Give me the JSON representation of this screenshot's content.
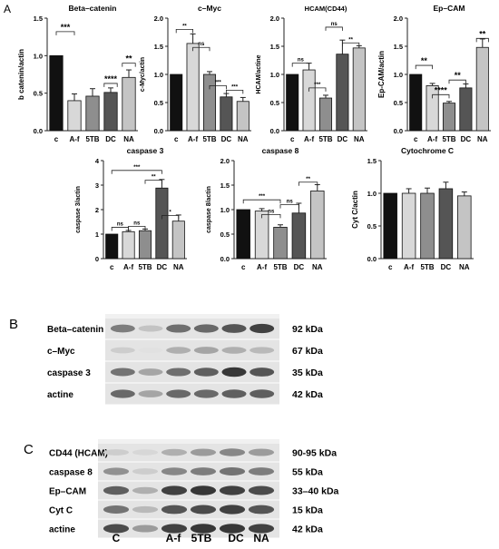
{
  "panel_labels": {
    "a": "A",
    "b": "B",
    "c": "C"
  },
  "colors": {
    "control": "#111111",
    "af": "#d8d8d8",
    "tb5": "#8e8e8e",
    "dc": "#555555",
    "na": "#c4c4c4",
    "error": "#222222"
  },
  "chart_data": [
    {
      "type": "bar",
      "title": "Beta–catenin",
      "ylabel": "b catenin/actin",
      "categories": [
        "c",
        "A-f",
        "5TB",
        "DC",
        "NA"
      ],
      "values": [
        1.0,
        0.4,
        0.46,
        0.51,
        0.71
      ],
      "errors": [
        0,
        0.09,
        0.1,
        0.06,
        0.1
      ],
      "ylim": [
        0,
        1.5
      ],
      "yticks": [
        "0.0",
        "0.5",
        "1.0",
        "1.5"
      ],
      "significance": [
        "***",
        "****",
        "**"
      ]
    },
    {
      "type": "bar",
      "title": "c–Myc",
      "ylabel": "c-Myc/actin",
      "categories": [
        "c",
        "A-f",
        "5TB",
        "DC",
        "NA"
      ],
      "values": [
        1.0,
        1.55,
        1.0,
        0.6,
        0.52
      ],
      "errors": [
        0,
        0.17,
        0.05,
        0.06,
        0.07
      ],
      "ylim": [
        0,
        2.0
      ],
      "yticks": [
        "0.0",
        "0.5",
        "1.0",
        "1.5",
        "2.0"
      ],
      "significance": [
        "**",
        "ns",
        "***",
        "***"
      ]
    },
    {
      "type": "bar",
      "title": "HCAM(CD44)",
      "ylabel": "HCAM/actine",
      "categories": [
        "c",
        "A-f",
        "5TB",
        "DC",
        "NA"
      ],
      "values": [
        1.0,
        1.08,
        0.58,
        1.36,
        1.47
      ],
      "errors": [
        0,
        0.12,
        0.05,
        0.25,
        0.04
      ],
      "ylim": [
        0,
        2.0
      ],
      "yticks": [
        "0.0",
        "0.5",
        "1.0",
        "1.5",
        "2.0"
      ],
      "significance": [
        "ns",
        "***",
        "ns",
        "**"
      ]
    },
    {
      "type": "bar",
      "title": "Ep–CAM",
      "ylabel": "Ep-CAM/actin",
      "categories": [
        "c",
        "A-f",
        "5TB",
        "DC",
        "NA"
      ],
      "values": [
        1.0,
        0.8,
        0.49,
        0.76,
        1.48
      ],
      "errors": [
        0,
        0.04,
        0.03,
        0.07,
        0.15
      ],
      "ylim": [
        0,
        2.0
      ],
      "yticks": [
        "0.0",
        "0.5",
        "1.0",
        "1.5",
        "2.0"
      ],
      "significance": [
        "**",
        "****",
        "**",
        "**"
      ]
    },
    {
      "type": "bar",
      "title": "caspase 3",
      "ylabel": "caspase 3/actin",
      "categories": [
        "c",
        "A-f",
        "5TB",
        "DC",
        "NA"
      ],
      "values": [
        1.0,
        1.1,
        1.14,
        2.88,
        1.53
      ],
      "errors": [
        0,
        0.05,
        0.07,
        0.35,
        0.25
      ],
      "ylim": [
        0,
        4
      ],
      "yticks": [
        "0",
        "1",
        "2",
        "3",
        "4"
      ],
      "significance": [
        "***",
        "ns",
        "ns",
        "**",
        "*"
      ]
    },
    {
      "type": "bar",
      "title": "caspase 8",
      "ylabel": "caspase 8/actin",
      "categories": [
        "c",
        "A-f",
        "5TB",
        "DC",
        "NA"
      ],
      "values": [
        1.0,
        0.97,
        0.64,
        0.93,
        1.38
      ],
      "errors": [
        0,
        0.05,
        0.05,
        0.2,
        0.13
      ],
      "ylim": [
        0,
        2.0
      ],
      "yticks": [
        "0.0",
        "0.5",
        "1.0",
        "1.5",
        "2.0"
      ],
      "significance": [
        "***",
        "ns",
        "ns",
        "**"
      ]
    },
    {
      "type": "bar",
      "title": "Cytochrome C",
      "ylabel": "Cyt C/actin",
      "categories": [
        "c",
        "A-f",
        "5TB",
        "DC",
        "NA"
      ],
      "values": [
        1.0,
        1.0,
        1.0,
        1.07,
        0.96
      ],
      "errors": [
        0,
        0.07,
        0.08,
        0.1,
        0.06
      ],
      "ylim": [
        0,
        1.5
      ],
      "yticks": [
        "0.0",
        "0.5",
        "1.0",
        "1.5"
      ],
      "significance": []
    }
  ],
  "blot_b": {
    "rows": [
      {
        "protein": "Beta–catenin",
        "kda": "92 kDa",
        "bands": [
          0.55,
          0.2,
          0.62,
          0.65,
          0.75,
          0.85
        ]
      },
      {
        "protein": "c–Myc",
        "kda": "67 kDa",
        "bands": [
          0.15,
          0.05,
          0.3,
          0.35,
          0.3,
          0.25
        ]
      },
      {
        "protein": "caspase 3",
        "kda": "35 kDa",
        "bands": [
          0.6,
          0.35,
          0.62,
          0.7,
          0.9,
          0.75
        ]
      },
      {
        "protein": "actine",
        "kda": "42 kDa",
        "bands": [
          0.65,
          0.35,
          0.65,
          0.65,
          0.7,
          0.7
        ]
      }
    ]
  },
  "blot_c": {
    "rows": [
      {
        "protein": "CD44 (HCAM)",
        "kda": "90-95 kDa",
        "bands": [
          0.15,
          0.1,
          0.3,
          0.4,
          0.5,
          0.4
        ]
      },
      {
        "protein": "caspase 8",
        "kda": "55 kDa",
        "bands": [
          0.45,
          0.15,
          0.5,
          0.55,
          0.6,
          0.55
        ]
      },
      {
        "protein": "Ep–CAM",
        "kda": "33–40 kDa",
        "bands": [
          0.7,
          0.3,
          0.85,
          0.9,
          0.85,
          0.8
        ]
      },
      {
        "protein": "Cyt C",
        "kda": "15 kDa",
        "bands": [
          0.6,
          0.25,
          0.75,
          0.8,
          0.85,
          0.75
        ]
      },
      {
        "protein": "actine",
        "kda": "42  kDa",
        "bands": [
          0.8,
          0.4,
          0.85,
          0.9,
          0.9,
          0.85
        ]
      }
    ],
    "lane_labels": [
      "C",
      "A-f",
      "5TB",
      "DC",
      "NA"
    ]
  }
}
